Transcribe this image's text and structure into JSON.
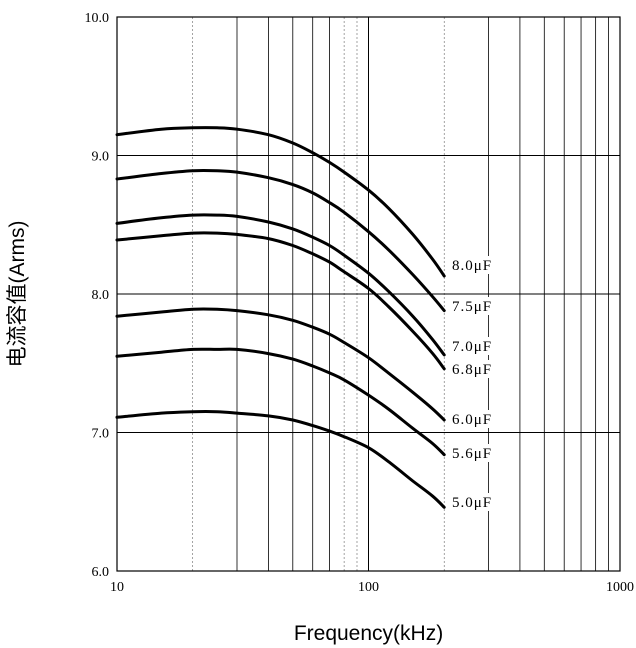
{
  "chart_data": {
    "type": "line",
    "xlabel": "Frequency(kHz)",
    "ylabel": "电流容值(Arms)",
    "x_scale": "log",
    "xlim": [
      10,
      1000
    ],
    "ylim": [
      6.0,
      10.0
    ],
    "x_ticks": [
      "10",
      "100",
      "1000"
    ],
    "y_ticks": [
      "6.0",
      "7.0",
      "8.0",
      "9.0",
      "10.0"
    ],
    "grid": true,
    "series": [
      {
        "name": "8.0μF",
        "x": [
          10,
          15,
          20,
          25,
          30,
          40,
          50,
          60,
          70,
          80,
          100,
          120,
          150,
          180,
          200
        ],
        "y": [
          9.15,
          9.19,
          9.2,
          9.2,
          9.19,
          9.15,
          9.09,
          9.02,
          8.95,
          8.88,
          8.75,
          8.62,
          8.43,
          8.25,
          8.13
        ]
      },
      {
        "name": "7.5μF",
        "x": [
          10,
          15,
          20,
          25,
          30,
          40,
          50,
          60,
          70,
          80,
          100,
          120,
          150,
          180,
          200
        ],
        "y": [
          8.83,
          8.87,
          8.89,
          8.89,
          8.88,
          8.84,
          8.79,
          8.73,
          8.66,
          8.59,
          8.45,
          8.32,
          8.14,
          7.98,
          7.88
        ]
      },
      {
        "name": "7.0μF",
        "x": [
          10,
          15,
          20,
          25,
          30,
          40,
          50,
          60,
          70,
          80,
          100,
          120,
          150,
          180,
          200
        ],
        "y": [
          8.51,
          8.55,
          8.57,
          8.57,
          8.56,
          8.52,
          8.47,
          8.41,
          8.35,
          8.28,
          8.15,
          8.02,
          7.84,
          7.67,
          7.56
        ]
      },
      {
        "name": "6.8μF",
        "x": [
          10,
          15,
          20,
          25,
          30,
          40,
          50,
          60,
          70,
          80,
          100,
          120,
          150,
          180,
          200
        ],
        "y": [
          8.39,
          8.42,
          8.44,
          8.44,
          8.43,
          8.4,
          8.35,
          8.29,
          8.23,
          8.16,
          8.04,
          7.91,
          7.73,
          7.57,
          7.46
        ]
      },
      {
        "name": "6.0μF",
        "x": [
          10,
          15,
          20,
          25,
          30,
          40,
          50,
          60,
          70,
          80,
          100,
          120,
          150,
          180,
          200
        ],
        "y": [
          7.84,
          7.87,
          7.89,
          7.89,
          7.88,
          7.85,
          7.81,
          7.76,
          7.71,
          7.65,
          7.54,
          7.43,
          7.29,
          7.17,
          7.09
        ]
      },
      {
        "name": "5.6μF",
        "x": [
          10,
          15,
          20,
          25,
          30,
          40,
          50,
          60,
          70,
          80,
          100,
          120,
          150,
          180,
          200
        ],
        "y": [
          7.55,
          7.58,
          7.6,
          7.6,
          7.6,
          7.57,
          7.53,
          7.48,
          7.43,
          7.38,
          7.27,
          7.17,
          7.03,
          6.92,
          6.84
        ]
      },
      {
        "name": "5.0μF",
        "x": [
          10,
          15,
          20,
          25,
          30,
          40,
          50,
          60,
          70,
          80,
          100,
          120,
          150,
          180,
          200
        ],
        "y": [
          7.11,
          7.14,
          7.15,
          7.15,
          7.14,
          7.12,
          7.09,
          7.05,
          7.01,
          6.97,
          6.89,
          6.79,
          6.65,
          6.54,
          6.46
        ]
      }
    ],
    "series_labels": [
      "8.0μF",
      "7.5μF",
      "7.0μF",
      "6.8μF",
      "6.0μF",
      "5.6μF",
      "5.0μF"
    ]
  }
}
